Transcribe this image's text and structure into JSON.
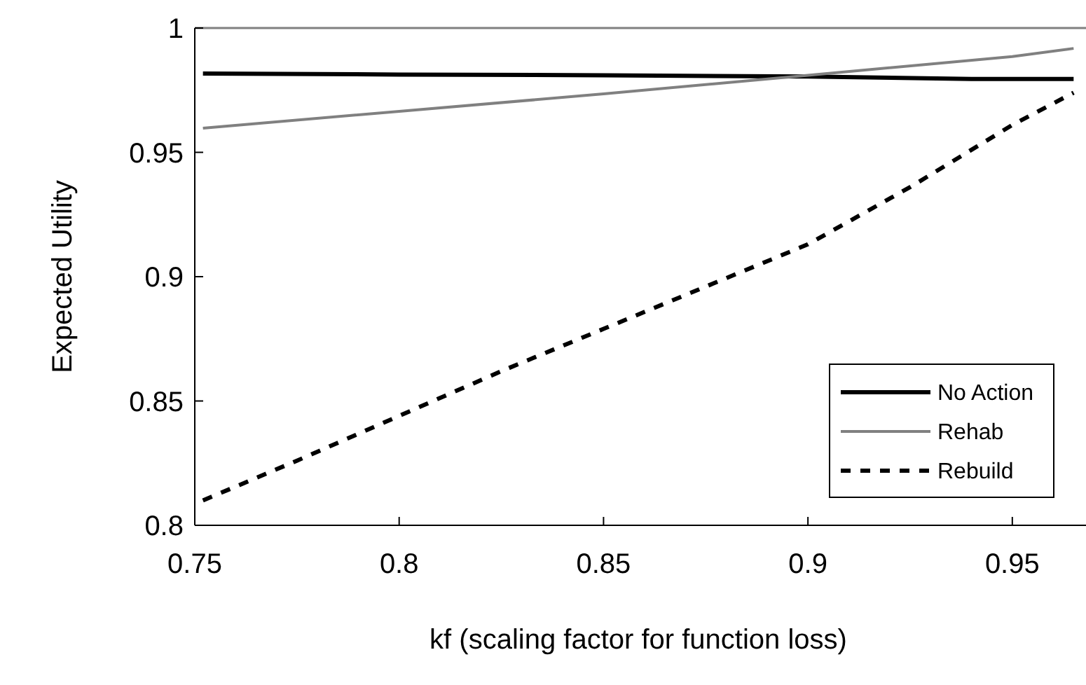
{
  "chart_data": {
    "type": "line",
    "xlabel": "kf (scaling factor for function loss)",
    "ylabel": "Expected Utility",
    "xlim": [
      0.75,
      0.967
    ],
    "xticks": [
      0.75,
      0.8,
      0.85,
      0.9,
      0.95
    ],
    "ylim": [
      0.8,
      1
    ],
    "yticks": [
      0.8,
      0.85,
      0.9,
      0.95,
      1
    ],
    "grid": false,
    "legend": "bottom right",
    "marker": "none",
    "series": [
      {
        "name": "No Action",
        "color": "#000000",
        "line_style": "solid",
        "x": [
          0.752,
          0.8,
          0.85,
          0.9,
          0.94,
          0.965
        ],
        "values": [
          0.9817,
          0.9813,
          0.981,
          0.9805,
          0.9795,
          0.9795
        ]
      },
      {
        "name": "Rehab",
        "color": "#808080",
        "line_style": "solid",
        "x": [
          0.752,
          0.8,
          0.85,
          0.9,
          0.95,
          0.965
        ],
        "values": [
          0.9597,
          0.9665,
          0.9735,
          0.981,
          0.9885,
          0.9918
        ]
      },
      {
        "name": "Rebuild",
        "color": "#000000",
        "line_style": "dashed",
        "x": [
          0.752,
          0.775,
          0.8,
          0.825,
          0.85,
          0.875,
          0.9,
          0.925,
          0.95,
          0.965
        ],
        "values": [
          0.81,
          0.826,
          0.844,
          0.862,
          0.879,
          0.896,
          0.913,
          0.936,
          0.961,
          0.974
        ]
      }
    ]
  }
}
